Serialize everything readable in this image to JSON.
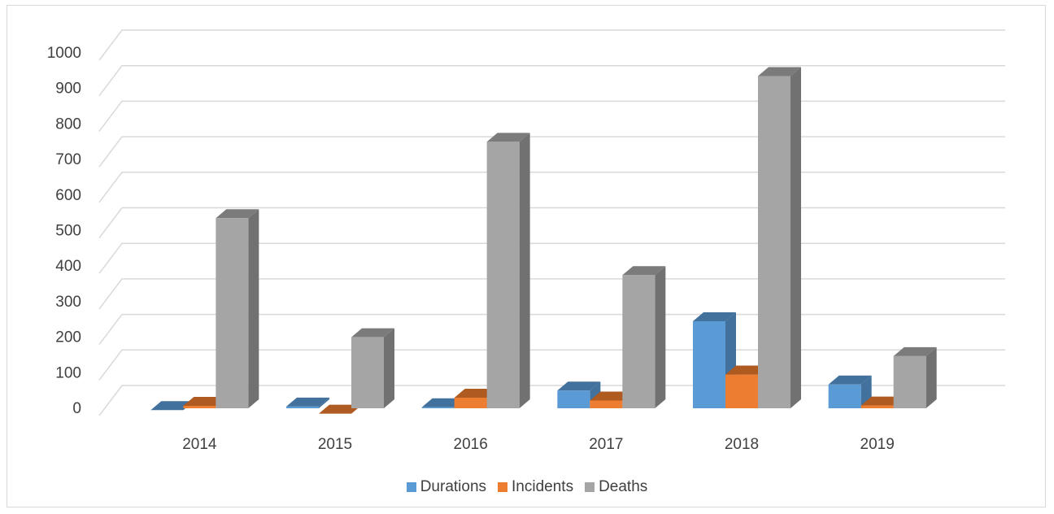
{
  "chart_data": {
    "type": "bar",
    "title": "",
    "xlabel": "",
    "ylabel": "",
    "categories": [
      "2014",
      "2015",
      "2016",
      "2017",
      "2018",
      "2019"
    ],
    "series": [
      {
        "name": "Durations",
        "values": [
          20,
          30,
          28,
          75,
          270,
          92
        ]
      },
      {
        "name": "Incidents",
        "values": [
          32,
          10,
          55,
          47,
          120,
          33
        ]
      },
      {
        "name": "Deaths",
        "values": [
          560,
          225,
          775,
          400,
          960,
          172
        ]
      }
    ],
    "ylim": [
      0,
      1000
    ],
    "yticks": [
      "0",
      "100",
      "200",
      "300",
      "400",
      "500",
      "600",
      "700",
      "800",
      "900",
      "1000"
    ],
    "grid": true,
    "legend_position": "bottom",
    "style": "3d-clustered-column",
    "colors": {
      "Durations": {
        "front": "#5b9bd5",
        "top": "#41719c",
        "side": "#41719c"
      },
      "Incidents": {
        "front": "#ed7d31",
        "top": "#ae5a21",
        "side": "#ae5a21"
      },
      "Deaths": {
        "front": "#a5a5a5",
        "top": "#7b7b7b",
        "side": "#717171"
      }
    },
    "gridline_color": "#d9d9d9",
    "text_color": "#404040"
  }
}
